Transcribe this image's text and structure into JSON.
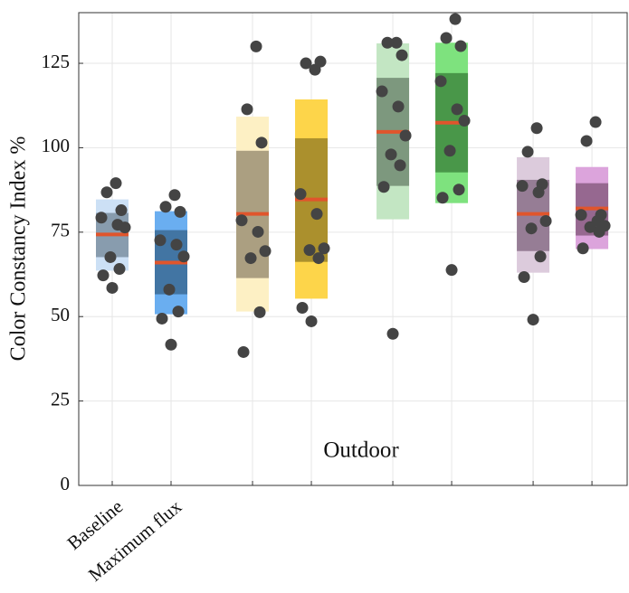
{
  "chart_data": {
    "type": "box",
    "y_label": "Color Constancy Index %",
    "annotation": "Outdoor",
    "categories": [
      "Baseline",
      "Maximum flux",
      null,
      null,
      null,
      null,
      null,
      null
    ],
    "ylim": [
      0,
      140
    ],
    "yticks": [
      0,
      25,
      50,
      75,
      100,
      125
    ],
    "grid": true,
    "median_color": "#e0552c",
    "point_color": "#444444",
    "boxes": [
      {
        "color": "#cce0f5",
        "inner_color": "#7b8fa1",
        "low": 63.6,
        "q1": 67.6,
        "median": 74.3,
        "q3": 80.7,
        "high": 84.7,
        "points": [
          89.5,
          86.8,
          81.5,
          79.3,
          77.2,
          76.4,
          67.6,
          64.1,
          62.2,
          58.5
        ]
      },
      {
        "color": "#6aaef0",
        "inner_color": "#3b6b95",
        "low": 50.7,
        "q1": 56.6,
        "median": 66,
        "q3": 75.6,
        "high": 81.2,
        "points": [
          86,
          82.5,
          81,
          72.6,
          71.3,
          67.8,
          58,
          51.5,
          49.4,
          41.7
        ]
      },
      {
        "color": "#fdf0c4",
        "inner_color": "#9c9176",
        "low": 51.5,
        "q1": 61.4,
        "median": 80.4,
        "q3": 99.1,
        "high": 109.2,
        "points": [
          130,
          111.4,
          101.5,
          78.5,
          75.1,
          69.4,
          67.3,
          51.3,
          39.5
        ]
      },
      {
        "color": "#fdd54a",
        "inner_color": "#9c8428",
        "low": 55.3,
        "q1": 66.2,
        "median": 84.7,
        "q3": 102.8,
        "high": 114.3,
        "points": [
          123.1,
          125,
          125.5,
          86.3,
          80.4,
          70.2,
          69.7,
          67.3,
          52.6,
          48.6
        ]
      },
      {
        "color": "#c3e6c3",
        "inner_color": "#718a72",
        "low": 78.8,
        "q1": 88.7,
        "median": 104.7,
        "q3": 120.7,
        "high": 130.9,
        "points": [
          131.1,
          131.1,
          127.4,
          116.7,
          112.2,
          103.6,
          98,
          94.8,
          88.4,
          44.9
        ]
      },
      {
        "color": "#7ee27e",
        "inner_color": "#3f8a3f",
        "low": 83.6,
        "q1": 92.7,
        "median": 107.4,
        "q3": 122.1,
        "high": 131.1,
        "points": [
          138.1,
          132.5,
          130.1,
          119.7,
          111.4,
          108,
          99.1,
          87.6,
          85.2,
          63.8
        ]
      },
      {
        "color": "#dccbdc",
        "inner_color": "#8a7088",
        "low": 63,
        "q1": 69.4,
        "median": 80.4,
        "q3": 90.5,
        "high": 97.2,
        "points": [
          105.8,
          98.8,
          89.2,
          88.7,
          86.8,
          78.3,
          76.1,
          67.8,
          61.7,
          49.1
        ]
      },
      {
        "color": "#dca4dc",
        "inner_color": "#8a5e82",
        "low": 70,
        "q1": 74,
        "median": 82,
        "q3": 89.5,
        "high": 94.3,
        "points": [
          107.6,
          102,
          80.1,
          80.1,
          78.3,
          76.9,
          76.5,
          75.1,
          70.2
        ]
      }
    ]
  }
}
